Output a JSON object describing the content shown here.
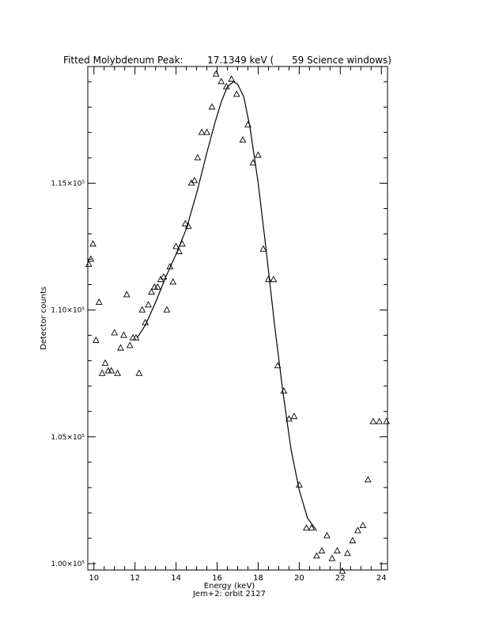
{
  "chart_data": {
    "type": "scatter",
    "title": "Fitted Molybdenum Peak:        17.1349 keV (      59 Science windows)",
    "xlabel": "Energy (keV)",
    "ylabel": "Detector counts",
    "footer": "Jem+2: orbit 2127",
    "xlim": [
      9.7,
      24.3
    ],
    "ylim": [
      99750,
      119600
    ],
    "x_ticks": [
      10,
      12,
      14,
      16,
      18,
      20,
      22,
      24
    ],
    "x_tick_labels": [
      "10",
      "12",
      "14",
      "16",
      "18",
      "20",
      "22",
      "24"
    ],
    "y_ticks": [
      100000,
      105000,
      110000,
      115000
    ],
    "y_tick_labels": [
      "1.00×10⁵",
      "1.05×10⁵",
      "1.10×10⁵",
      "1.15×10⁵"
    ],
    "grid": false,
    "legend": "none",
    "series": [
      {
        "marker": "triangle",
        "x": [
          9.75,
          9.85,
          9.95,
          10.1,
          10.25,
          10.4,
          10.55,
          10.7,
          10.85,
          11.0,
          11.15,
          11.3,
          11.45,
          11.6,
          11.75,
          11.9,
          12.05,
          12.2,
          12.35,
          12.5,
          12.65,
          12.8,
          12.95,
          13.1,
          13.25,
          13.4,
          13.55,
          13.7,
          13.85,
          14.0,
          14.15,
          14.3,
          14.45,
          14.6,
          14.75,
          14.9,
          15.05,
          15.25,
          15.5,
          15.75,
          15.95,
          16.2,
          16.45,
          16.7,
          16.95,
          17.25,
          17.5,
          17.75,
          18.0,
          18.25,
          18.5,
          18.75,
          18.95,
          19.25,
          19.5,
          19.75,
          20.0,
          20.35,
          20.6,
          20.85,
          21.1,
          21.35,
          21.6,
          21.85,
          22.1,
          22.35,
          22.6,
          22.85,
          23.1,
          23.35,
          23.6,
          23.9,
          24.25
        ],
        "y": [
          111800,
          112000,
          112600,
          108800,
          110300,
          107500,
          107900,
          107600,
          107600,
          109100,
          107500,
          108500,
          109000,
          110600,
          108600,
          108900,
          108900,
          107500,
          110000,
          109500,
          110200,
          110700,
          110900,
          110900,
          111200,
          111300,
          110000,
          111700,
          111100,
          112500,
          112300,
          112600,
          113400,
          113300,
          115000,
          115100,
          116000,
          117000,
          117000,
          118000,
          119300,
          119000,
          118800,
          119100,
          118500,
          116700,
          117300,
          115800,
          116100,
          112400,
          111200,
          111200,
          107800,
          106800,
          105700,
          105800,
          103100,
          101400,
          101400,
          100300,
          100500,
          101100,
          100200,
          100500,
          99700,
          100400,
          100900,
          101300,
          101500,
          103300,
          105600,
          105600,
          105600
        ]
      },
      {
        "line": "fit",
        "x": [
          12.1,
          12.5,
          13.0,
          13.5,
          14.0,
          14.5,
          15.0,
          15.5,
          15.9,
          16.2,
          16.5,
          16.8,
          17.0,
          17.3,
          17.6,
          18.0,
          18.4,
          18.8,
          19.2,
          19.6,
          20.0,
          20.4,
          20.85
        ],
        "y": [
          108900,
          109400,
          110300,
          111300,
          112200,
          113200,
          114600,
          116200,
          117400,
          118200,
          118800,
          119000,
          118900,
          118400,
          117200,
          115000,
          112300,
          109400,
          106800,
          104500,
          102900,
          101800,
          101300
        ]
      }
    ]
  }
}
